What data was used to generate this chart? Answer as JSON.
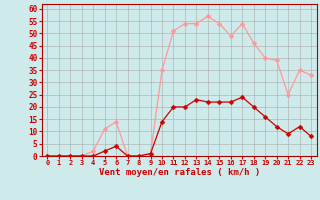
{
  "x": [
    0,
    1,
    2,
    3,
    4,
    5,
    6,
    7,
    8,
    9,
    10,
    11,
    12,
    13,
    14,
    15,
    16,
    17,
    18,
    19,
    20,
    21,
    22,
    23
  ],
  "wind_avg": [
    0,
    0,
    0,
    0,
    0,
    2,
    4,
    0,
    0,
    1,
    14,
    20,
    20,
    23,
    22,
    22,
    22,
    24,
    20,
    16,
    12,
    9,
    12,
    8
  ],
  "wind_gust": [
    0,
    0,
    0,
    0,
    2,
    11,
    14,
    0,
    0,
    1,
    35,
    51,
    54,
    54,
    57,
    54,
    49,
    54,
    46,
    40,
    39,
    25,
    35,
    33
  ],
  "xlabel": "Vent moyen/en rafales ( km/h )",
  "ylabel_ticks": [
    0,
    5,
    10,
    15,
    20,
    25,
    30,
    35,
    40,
    45,
    50,
    55,
    60
  ],
  "xlim": [
    -0.5,
    23.5
  ],
  "ylim": [
    0,
    62
  ],
  "background_color": "#ceeaea",
  "grid_color": "#aaaaaa",
  "avg_color": "#cc0000",
  "gust_color": "#ff9999",
  "tick_label_color": "#cc0000",
  "xlabel_color": "#cc0000",
  "markersize": 2.5
}
